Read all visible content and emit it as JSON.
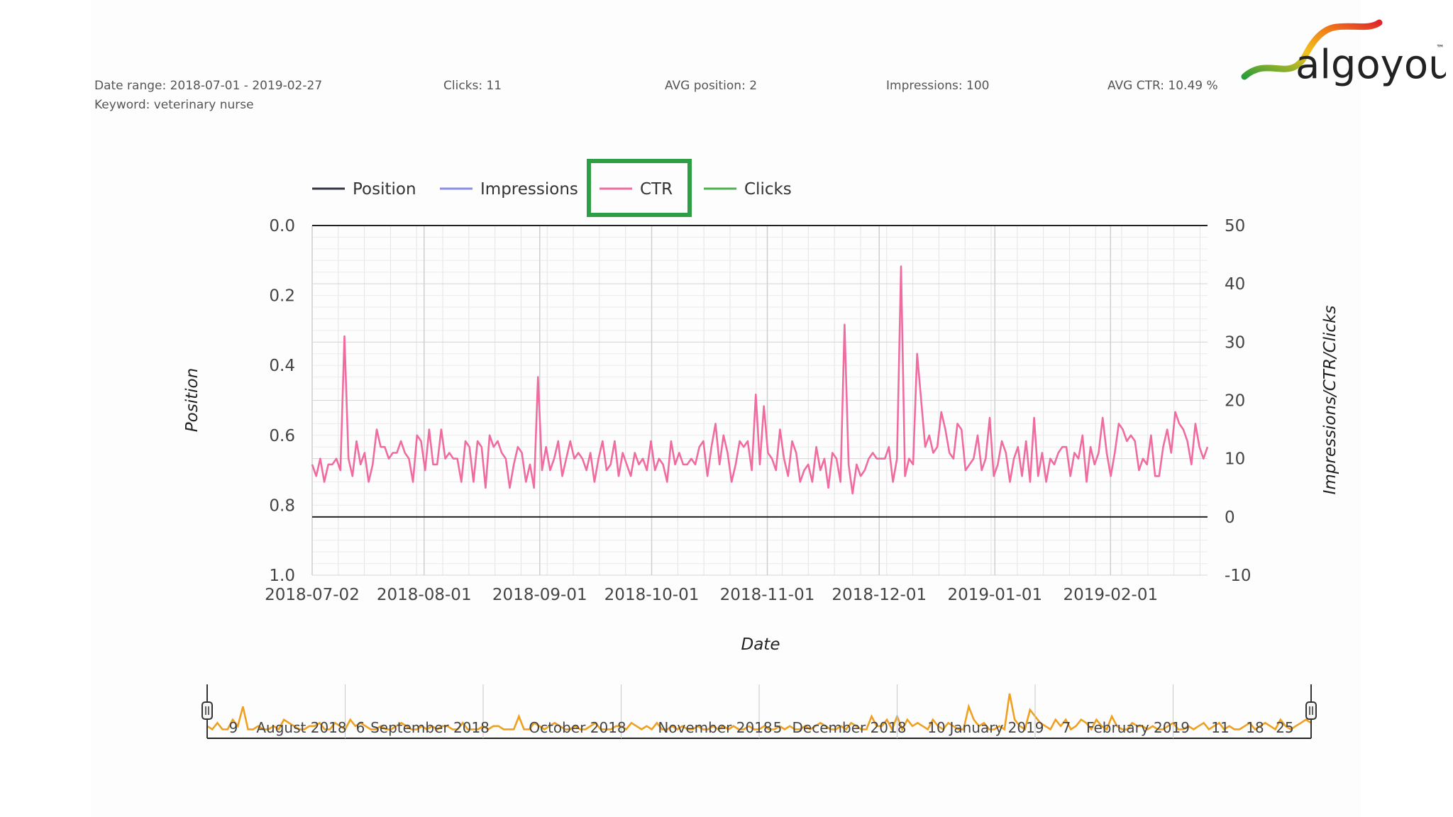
{
  "summary": {
    "date_range": "Date range: 2018-07-01 - 2019-02-27",
    "keyword": "Keyword: veterinary nurse",
    "clicks": "Clicks: 11",
    "avg_position": "AVG position: 2",
    "impressions": "Impressions: 100",
    "avg_ctr": "AVG CTR: 10.49 %"
  },
  "logo": {
    "text": "algoyou",
    "tm": "™"
  },
  "colors": {
    "position": "#2f3542",
    "impressions": "#8c8ce6",
    "ctr": "#f06b9f",
    "clicks": "#4caf50",
    "highlight": "#2e9e44",
    "navigator": "#f0a020"
  },
  "chart_data": {
    "type": "line",
    "xlabel": "Date",
    "ylabel_left": "Position",
    "ylabel_right": "Impressions/CTR/Clicks",
    "x_ticks": [
      "2018-07-02",
      "2018-08-01",
      "2018-09-01",
      "2018-10-01",
      "2018-11-01",
      "2018-12-01",
      "2019-01-01",
      "2019-02-01"
    ],
    "y_left_ticks": [
      "0.0",
      "0.2",
      "0.4",
      "0.6",
      "0.8",
      "1.0"
    ],
    "y_left_range": [
      0,
      1
    ],
    "y_right_ticks": [
      "50",
      "40",
      "30",
      "20",
      "10",
      "0",
      "-10"
    ],
    "y_right_range": [
      -10,
      50
    ],
    "legend": [
      "Position",
      "Impressions",
      "CTR",
      "Clicks"
    ],
    "highlighted_legend_item": "CTR",
    "x_range": [
      "2018-07-02",
      "2019-02-27"
    ],
    "series": [
      {
        "name": "CTR",
        "values": [
          9,
          7,
          10,
          6,
          9,
          9,
          10,
          8,
          31,
          10,
          7,
          13,
          9,
          11,
          6,
          9,
          15,
          12,
          12,
          10,
          11,
          11,
          13,
          11,
          10,
          6,
          14,
          13,
          8,
          15,
          9,
          9,
          15,
          10,
          11,
          10,
          10,
          6,
          13,
          12,
          6,
          13,
          12,
          5,
          14,
          12,
          13,
          11,
          10,
          5,
          9,
          12,
          11,
          6,
          9,
          5,
          24,
          8,
          12,
          8,
          10,
          13,
          7,
          10,
          13,
          10,
          11,
          10,
          8,
          11,
          6,
          10,
          13,
          8,
          9,
          13,
          7,
          11,
          9,
          7,
          11,
          9,
          10,
          8,
          13,
          8,
          10,
          9,
          6,
          13,
          9,
          11,
          9,
          9,
          10,
          9,
          12,
          13,
          7,
          12,
          16,
          9,
          14,
          11,
          6,
          9,
          13,
          12,
          13,
          8,
          21,
          9,
          19,
          11,
          10,
          8,
          15,
          10,
          7,
          13,
          11,
          6,
          8,
          9,
          6,
          12,
          8,
          10,
          5,
          11,
          10,
          6,
          33,
          9,
          4,
          9,
          7,
          8,
          10,
          11,
          10,
          10,
          10,
          12,
          6,
          10,
          43,
          7,
          10,
          9,
          28,
          20,
          12,
          14,
          11,
          12,
          18,
          15,
          11,
          10,
          16,
          15,
          8,
          9,
          10,
          14,
          8,
          10,
          17,
          7,
          9,
          13,
          11,
          6,
          10,
          12,
          7,
          13,
          6,
          17,
          7,
          11,
          6,
          10,
          9,
          11,
          12,
          12,
          7,
          11,
          10,
          14,
          6,
          12,
          9,
          11,
          17,
          11,
          7,
          11,
          16,
          15,
          13,
          14,
          13,
          8,
          10,
          9,
          14,
          7,
          7,
          12,
          15,
          11,
          18,
          16,
          15,
          13,
          9,
          16,
          12,
          10,
          12
        ]
      }
    ]
  },
  "navigator": {
    "labels": [
      "9",
      "August 2018",
      "6",
      "September 2018",
      "October 2018",
      "November 2018",
      "5",
      "December 2018",
      "10",
      "January 2019",
      "7",
      "February 2019",
      "11",
      "18",
      "25"
    ],
    "values": [
      2,
      1,
      3,
      1,
      1,
      4,
      2,
      8,
      1,
      1,
      2,
      1,
      1,
      2,
      1,
      4,
      3,
      2,
      1,
      1,
      2,
      2,
      3,
      1,
      1,
      3,
      2,
      1,
      4,
      2,
      3,
      2,
      1,
      1,
      2,
      1,
      1,
      2,
      3,
      2,
      1,
      1,
      2,
      1,
      2,
      1,
      2,
      2,
      1,
      1,
      3,
      1,
      1,
      1,
      2,
      1,
      2,
      2,
      1,
      1,
      1,
      5,
      1,
      1,
      3,
      2,
      1,
      2,
      3,
      2,
      1,
      1,
      2,
      1,
      1,
      2,
      3,
      1,
      1,
      1,
      2,
      2,
      1,
      3,
      2,
      1,
      2,
      1,
      3,
      1,
      1,
      2,
      1,
      2,
      1,
      1,
      2,
      1,
      1,
      2,
      1,
      2,
      1,
      2,
      1,
      1,
      2,
      1,
      1,
      2,
      1,
      1,
      2,
      1,
      2,
      1,
      1,
      2,
      1,
      2,
      3,
      2,
      1,
      1,
      2,
      1,
      3,
      2,
      1,
      1,
      5,
      2,
      2,
      4,
      1,
      5,
      1,
      4,
      2,
      3,
      2,
      1,
      4,
      2,
      1,
      3,
      2,
      1,
      1,
      8,
      4,
      2,
      3,
      1,
      1,
      2,
      1,
      12,
      4,
      2,
      1,
      7,
      5,
      3,
      2,
      1,
      4,
      2,
      4,
      1,
      2,
      4,
      3,
      1,
      4,
      2,
      1,
      5,
      2,
      1,
      1,
      3,
      2,
      2,
      1,
      2,
      1,
      1,
      2,
      3,
      1,
      1,
      2,
      1,
      2,
      3,
      1,
      2,
      3,
      1,
      2,
      1,
      1,
      2,
      3,
      1,
      2,
      3,
      2,
      1,
      4,
      2,
      1,
      2,
      3,
      4,
      3
    ]
  }
}
